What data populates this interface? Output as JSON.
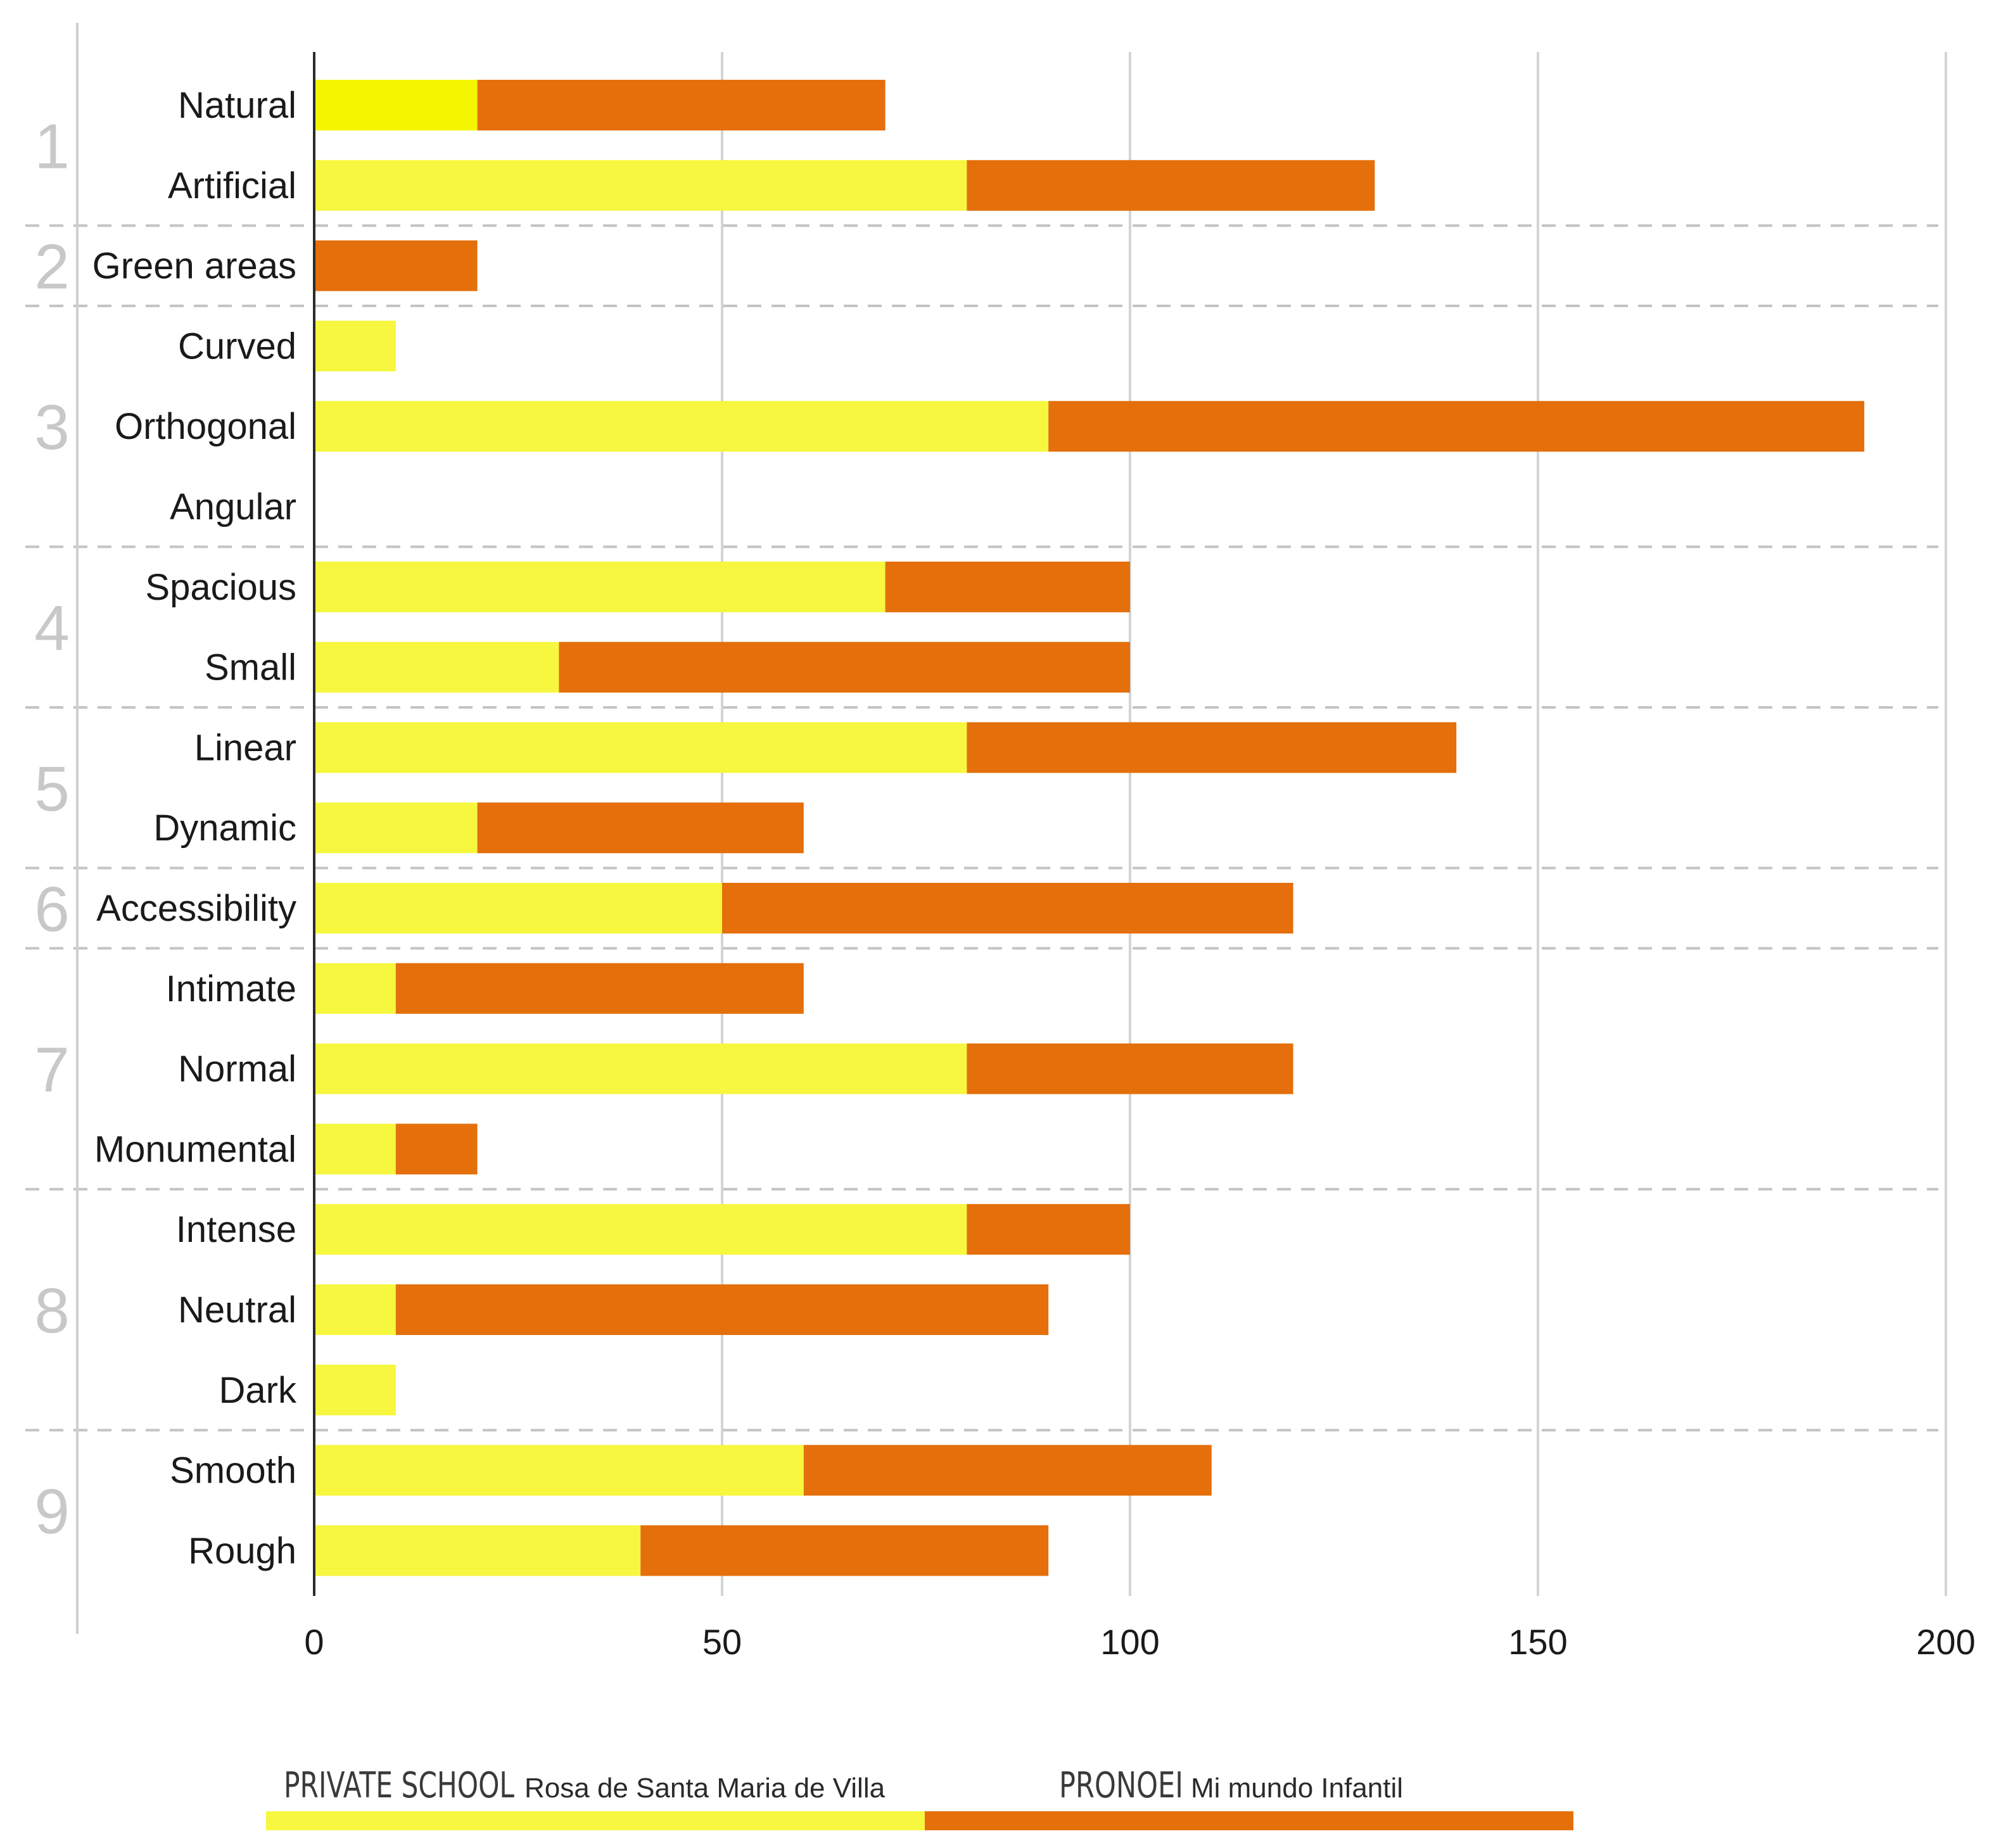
{
  "chart_data": {
    "type": "bar",
    "orientation": "horizontal",
    "stacked": true,
    "title": "",
    "xlabel": "",
    "ylabel": "",
    "xlim": [
      0,
      200
    ],
    "xticks": [
      0,
      50,
      100,
      150,
      200
    ],
    "grid": true,
    "categories": [
      "Natural",
      "Artificial",
      "Green areas",
      "Curved",
      "Orthogonal",
      "Angular",
      "Spacious",
      "Small",
      "Linear",
      "Dynamic",
      "Accessibility",
      "Intimate",
      "Normal",
      "Monumental",
      "Intense",
      "Neutral",
      "Dark",
      "Smooth",
      "Rough"
    ],
    "groups": [
      {
        "label": "1",
        "categories": [
          "Natural",
          "Artificial"
        ]
      },
      {
        "label": "2",
        "categories": [
          "Green areas"
        ]
      },
      {
        "label": "3",
        "categories": [
          "Curved",
          "Orthogonal",
          "Angular"
        ]
      },
      {
        "label": "4",
        "categories": [
          "Spacious",
          "Small"
        ]
      },
      {
        "label": "5",
        "categories": [
          "Linear",
          "Dynamic"
        ]
      },
      {
        "label": "6",
        "categories": [
          "Accessibility"
        ]
      },
      {
        "label": "7",
        "categories": [
          "Intimate",
          "Normal",
          "Monumental"
        ]
      },
      {
        "label": "8",
        "categories": [
          "Intense",
          "Neutral",
          "Dark"
        ]
      },
      {
        "label": "9",
        "categories": [
          "Smooth",
          "Rough"
        ]
      }
    ],
    "series": [
      {
        "name": "PRIVATE SCHOOL Rosa de Santa Maria de Villa",
        "name_main": "PRIVATE SCHOOL",
        "name_sub": "Rosa de Santa Maria de Villa",
        "color": "#f6f73e",
        "values": [
          20,
          80,
          0,
          10,
          90,
          0,
          70,
          30,
          80,
          20,
          50,
          10,
          80,
          10,
          80,
          10,
          10,
          60,
          40
        ]
      },
      {
        "name": "PRONOEI Mi mundo Infantil",
        "name_main": "PRONOEI",
        "name_sub": "Mi mundo Infantil",
        "color": "#e46f0b",
        "values": [
          50,
          50,
          20,
          0,
          100,
          0,
          30,
          70,
          60,
          40,
          70,
          50,
          40,
          10,
          20,
          80,
          0,
          50,
          50
        ]
      }
    ],
    "highlight": {
      "category": "Natural",
      "series": 0,
      "color": "#f5f500"
    },
    "legend_position": "bottom"
  }
}
